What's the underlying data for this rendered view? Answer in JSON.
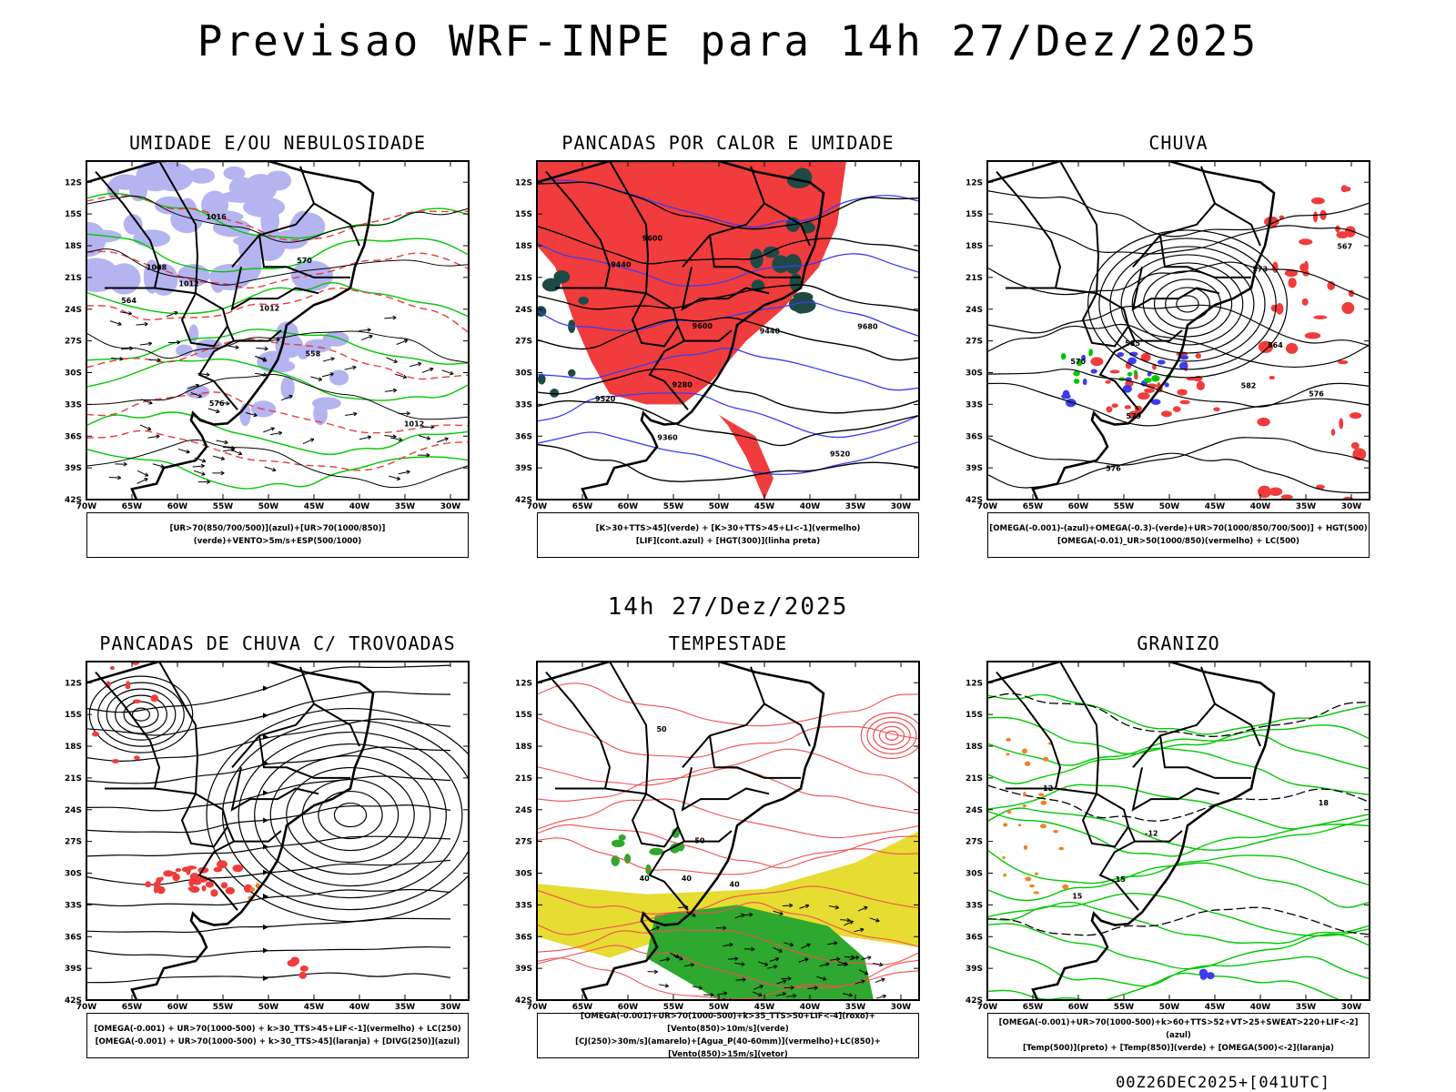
{
  "main_title": "Previsao WRF-INPE  para 14h 27/Dez/2025",
  "mid_title": "14h 27/Dez/2025",
  "footer": "00Z26DEC2025+[041UTC]",
  "axes": {
    "y_labels": [
      "12S",
      "15S",
      "18S",
      "21S",
      "24S",
      "27S",
      "30S",
      "33S",
      "36S",
      "39S",
      "42S"
    ],
    "x_labels": [
      "70W",
      "65W",
      "60W",
      "55W",
      "50W",
      "45W",
      "40W",
      "35W",
      "30W"
    ],
    "lat_range": [
      -42,
      -10
    ],
    "lon_range": [
      -70,
      -28
    ]
  },
  "colors": {
    "red_fill": "#f03c3c",
    "lavender": "#b4b4f0",
    "green_line": "#00c800",
    "blue_line": "#3c3cf0",
    "dark_teal": "#1e4a46",
    "yellow_fill": "#e6dc32",
    "orange": "#f08228"
  },
  "panels": [
    {
      "title": "UMIDADE E/OU NEBULOSIDADE",
      "legend": [
        "[UR>70(850/700/500)](azul)+[UR>70(1000/850)](verde)+VENTO>5m/s+ESP(500/1000)"
      ],
      "contour_labels": [
        "1012",
        "1008",
        "1012",
        "1016",
        "576",
        "570",
        "564",
        "558",
        "1012"
      ]
    },
    {
      "title": "PANCADAS POR CALOR E UMIDADE",
      "legend": [
        "[K>30+TTS>45](verde) + [K>30+TTS>45+LI<-1](vermelho)",
        "[LIF](cont.azul) + [HGT(300)](linha preta)"
      ],
      "contour_labels": [
        "9600",
        "9680",
        "9600",
        "9520",
        "9520",
        "9440",
        "9440",
        "9360",
        "9280"
      ]
    },
    {
      "title": "CHUVA",
      "legend": [
        "[OMEGA(-0.001)-(azul)+OMEGA(-0.3)-(verde)+UR>70(1000/850/700/500)] + HGT(500)",
        "[OMEGA(-0.01)_UR>50(1000/850)(vermelho) + LC(500)"
      ],
      "contour_labels": [
        "576",
        "582",
        "585",
        "579",
        "576",
        "573",
        "570",
        "567",
        "564"
      ]
    },
    {
      "title": "PANCADAS DE CHUVA C/ TROVOADAS",
      "legend": [
        "[OMEGA(-0.001) + UR>70(1000-500) + k>30_TTS>45+LIF<-1](vermelho) + LC(250)",
        "[OMEGA(-0.001) + UR>70(1000-500) + k>30_TTS>45](laranja) + [DIVG(250)](azul)"
      ],
      "contour_labels": []
    },
    {
      "title": "TEMPESTADE",
      "legend": [
        "[OMEGA(-0.001)+UR>70(1000-500)+k>35_TTS>50+LIF<-4](roxo)+[Vento(850)>10m/s](verde)",
        "[CJ(250)>30m/s](amarelo)+[Agua_P(40-60mm)](vermelho)+LC(850)+[Vento(850)>15m/s](vetor)"
      ],
      "contour_labels": [
        "40",
        "50",
        "40",
        "50",
        "40"
      ]
    },
    {
      "title": "GRANIZO",
      "legend": [
        "[OMEGA(-0.001)+UR>70(1000-500)+k>60+TTS>52+VT>25+SWEAT>220+LIF<-2](azul)",
        "[Temp(500)](preto) + [Temp(850)](verde) + [OMEGA(500)<-2](laranja)"
      ],
      "contour_labels": [
        "-12",
        "-12",
        "15",
        "18",
        "15"
      ]
    }
  ]
}
